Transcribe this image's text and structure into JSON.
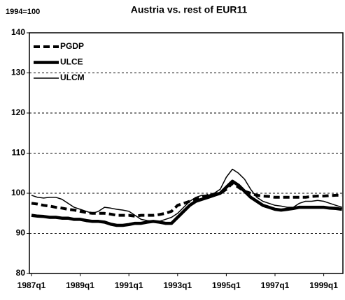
{
  "chart_data": {
    "type": "line",
    "title": "Austria vs. rest of EUR11",
    "subtitle": "1994=100",
    "categories": [
      "1987q1",
      null,
      null,
      null,
      null,
      null,
      null,
      null,
      "1989q1",
      null,
      null,
      null,
      null,
      null,
      null,
      null,
      "1991q1",
      null,
      null,
      null,
      null,
      null,
      null,
      null,
      "1993q1",
      null,
      null,
      null,
      null,
      null,
      null,
      null,
      "1995q1",
      null,
      null,
      null,
      null,
      null,
      null,
      null,
      "1997q1",
      null,
      null,
      null,
      null,
      null,
      null,
      null,
      "1999q1",
      null,
      null,
      null
    ],
    "series": [
      {
        "name": "PGDP",
        "color": "#000000",
        "style": "dashed",
        "values": [
          97.5,
          97.3,
          97.0,
          96.8,
          96.5,
          96.3,
          96.0,
          95.8,
          95.5,
          95.2,
          95.0,
          95.0,
          95.0,
          94.8,
          94.5,
          94.5,
          94.5,
          94.3,
          94.5,
          94.5,
          94.5,
          94.7,
          95.0,
          95.5,
          97.0,
          97.5,
          98.0,
          98.5,
          99.0,
          99.5,
          99.8,
          100.0,
          101.0,
          102.5,
          101.5,
          100.5,
          100.0,
          99.5,
          99.3,
          99.2,
          99.0,
          99.0,
          99.0,
          99.0,
          99.0,
          99.0,
          99.2,
          99.3,
          99.3,
          99.4,
          99.5,
          99.5
        ]
      },
      {
        "name": "ULCE",
        "color": "#000000",
        "style": "thick",
        "values": [
          94.5,
          94.3,
          94.2,
          94.0,
          94.0,
          93.8,
          93.8,
          93.5,
          93.5,
          93.2,
          93.0,
          93.0,
          92.8,
          92.3,
          92.0,
          92.0,
          92.2,
          92.5,
          92.5,
          92.8,
          93.0,
          92.8,
          92.5,
          92.5,
          94.0,
          95.5,
          97.0,
          98.0,
          98.5,
          99.0,
          99.5,
          100.0,
          101.5,
          103.0,
          102.0,
          100.5,
          99.0,
          98.0,
          97.0,
          96.5,
          96.0,
          95.8,
          96.0,
          96.2,
          96.5,
          96.5,
          96.5,
          96.5,
          96.5,
          96.3,
          96.2,
          96.0
        ]
      },
      {
        "name": "ULCM",
        "color": "#000000",
        "style": "thin",
        "values": [
          99.5,
          99.0,
          98.8,
          99.0,
          99.0,
          98.5,
          97.5,
          96.5,
          96.0,
          95.5,
          95.0,
          95.5,
          96.5,
          96.3,
          96.0,
          95.8,
          95.5,
          94.5,
          93.5,
          93.2,
          93.0,
          93.0,
          93.5,
          94.0,
          95.0,
          96.5,
          98.0,
          99.0,
          99.5,
          99.5,
          100.0,
          101.0,
          104.0,
          106.0,
          105.0,
          103.5,
          101.0,
          99.0,
          98.0,
          97.5,
          97.0,
          96.8,
          96.5,
          96.5,
          97.5,
          98.0,
          98.0,
          98.2,
          98.0,
          97.5,
          97.0,
          96.5
        ]
      }
    ],
    "ylim": [
      80,
      140
    ],
    "yticks": [
      80,
      90,
      100,
      110,
      120,
      130,
      140
    ],
    "grid": true,
    "legend": "upper left"
  }
}
